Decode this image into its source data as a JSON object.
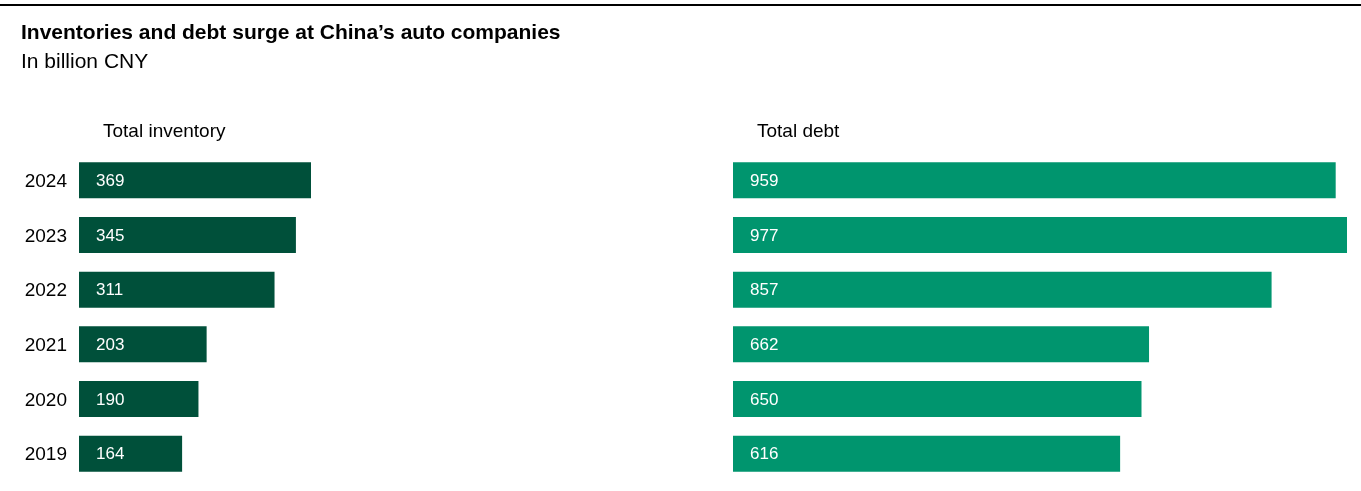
{
  "chart_data": [
    {
      "type": "bar",
      "title": "Inventories and debt surge at China’s auto companies",
      "subtitle": "In billion CNY",
      "xlabel": "Total inventory",
      "orientation": "horizontal",
      "categories": [
        "2024",
        "2023",
        "2022",
        "2021",
        "2020",
        "2019"
      ],
      "values": [
        369,
        345,
        311,
        203,
        190,
        164
      ],
      "color": "#00503a",
      "data_labels": true,
      "tick_labels": "y"
    },
    {
      "type": "bar",
      "xlabel": "Total debt",
      "orientation": "horizontal",
      "categories": [
        "2024",
        "2023",
        "2022",
        "2021",
        "2020",
        "2019"
      ],
      "values": [
        959,
        977,
        857,
        662,
        650,
        616
      ],
      "color": "#00956e",
      "data_labels": true,
      "tick_labels": false
    }
  ]
}
